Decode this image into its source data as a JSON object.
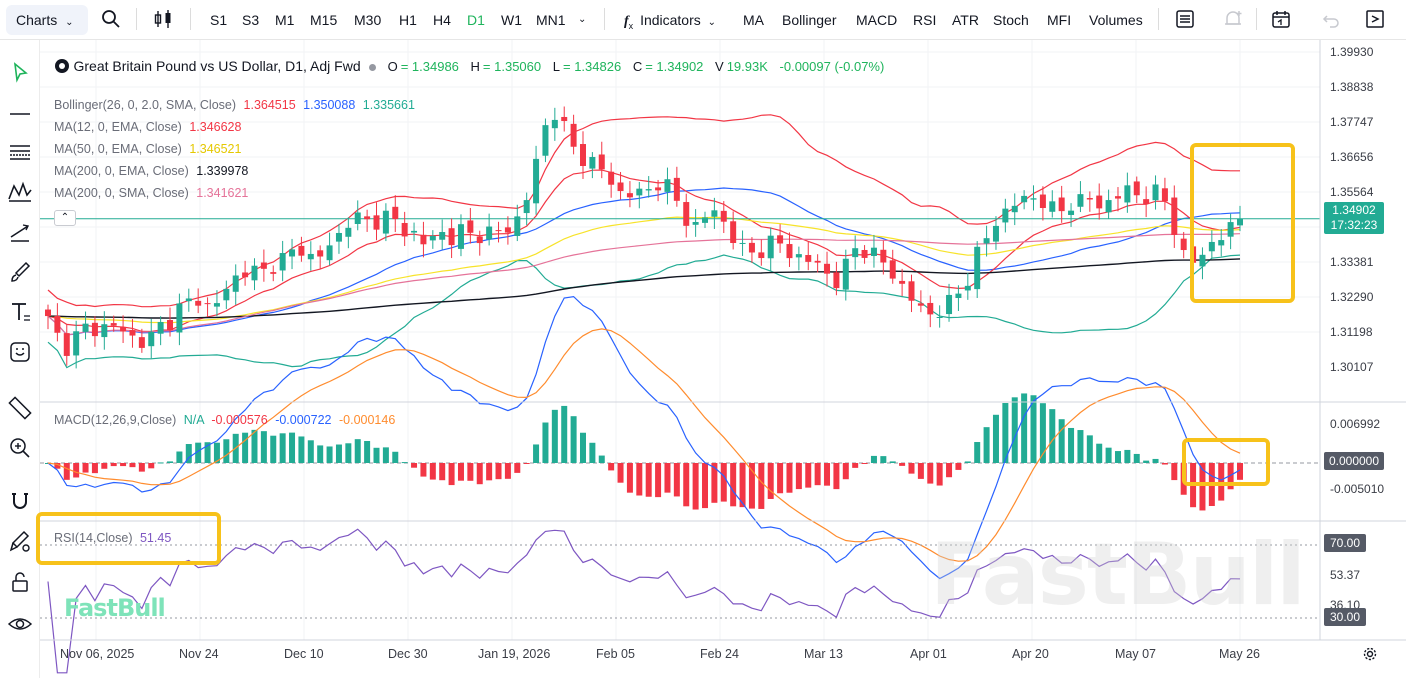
{
  "toolbar": {
    "charts_label": "Charts",
    "timeframes": [
      "S1",
      "S3",
      "M1",
      "M15",
      "M30",
      "H1",
      "H4",
      "D1",
      "W1",
      "MN1"
    ],
    "active_timeframe": "D1",
    "indicators_label": "Indicators",
    "quick_indicators": [
      "MA",
      "Bollinger",
      "MACD",
      "RSI",
      "ATR",
      "Stoch",
      "MFI",
      "Volumes"
    ]
  },
  "symbol": {
    "title": "Great Britain Pound vs US Dollar, D1, Adj Fwd",
    "o_label": "O",
    "o": "= 1.34986",
    "h_label": "H",
    "h": "= 1.35060",
    "l_label": "L",
    "l": "= 1.34826",
    "c_label": "C",
    "c": "= 1.34902",
    "v_label": "V",
    "v": "19.93K",
    "change": "-0.00097 (-0.07%)"
  },
  "indicators": {
    "bollinger": {
      "label": "Bollinger(26, 0, 2.0, SMA, Close)",
      "upper": "1.364515",
      "mid": "1.350088",
      "lower": "1.335661"
    },
    "ma12": {
      "label": "MA(12, 0, EMA, Close)",
      "value": "1.346628"
    },
    "ma50": {
      "label": "MA(50, 0, EMA, Close)",
      "value": "1.346521"
    },
    "ma200e": {
      "label": "MA(200, 0, EMA, Close)",
      "value": "1.339978"
    },
    "ma200s": {
      "label": "MA(200, 0, SMA, Close)",
      "value": "1.341621"
    },
    "macd": {
      "label": "MACD(12,26,9,Close)",
      "hist": "N/A",
      "macd": "-0.000576",
      "signal": "-0.000722",
      "diff": "-0.000146"
    },
    "rsi": {
      "label": "RSI(14,Close)",
      "value": "51.45"
    }
  },
  "price_axis": {
    "labels": [
      "1.39930",
      "1.38838",
      "1.37747",
      "1.36656",
      "1.35564",
      "1.33381",
      "1.32290",
      "1.31198",
      "1.30107"
    ],
    "current": "1.34902",
    "countdown": "17:32:23"
  },
  "macd_axis": {
    "labels": [
      "0.006992",
      "-0.005010"
    ],
    "current": "0.000000"
  },
  "rsi_axis": {
    "labels": [
      "53.37",
      "36.10"
    ],
    "upper": "70.00",
    "lower": "30.00"
  },
  "date_axis": [
    "Nov 06, 2025",
    "Nov 24",
    "Dec 10",
    "Dec 30",
    "Jan 19, 2026",
    "Feb 05",
    "Feb 24",
    "Mar 13",
    "Apr 01",
    "Apr 20",
    "May 07",
    "May 26"
  ],
  "branding": {
    "logo": "FastBull",
    "watermark": "FastBull"
  },
  "colors": {
    "up": "#22ab94",
    "down": "#f23645",
    "boll_upper": "#f23645",
    "boll_mid": "#2962ff",
    "boll_lower": "#22ab94",
    "ma50": "#f7e32a",
    "ma200e": "#131722",
    "ma200s": "#e57399",
    "macd_line": "#2962ff",
    "signal_line": "#ff8c2e",
    "rsi_line": "#7e57c2",
    "highlight": "#f7c21a"
  },
  "chart_data": {
    "type": "candlestick",
    "symbol": "GBPUSD",
    "timeframe": "D1",
    "x_range": [
      "Nov 06, 2025",
      "May 26"
    ],
    "y_range": [
      1.295,
      1.402
    ],
    "close_path": [
      1.318,
      1.3125,
      1.3095,
      1.314,
      1.316,
      1.315,
      1.3165,
      1.3155,
      1.3135,
      1.311,
      1.312,
      1.316,
      1.3175,
      1.3215,
      1.3235,
      1.3245,
      1.3215,
      1.324,
      1.329,
      1.3325,
      1.334,
      1.3315,
      1.3345,
      1.3365,
      1.3385,
      1.3395,
      1.3375,
      1.338,
      1.3405,
      1.345,
      1.35,
      1.3485,
      1.3475,
      1.3495,
      1.3505,
      1.3445,
      1.3455,
      1.342,
      1.3425,
      1.3445,
      1.3435,
      1.3455,
      1.3435,
      1.3445,
      1.3455,
      1.3445,
      1.3465,
      1.3525,
      1.3615,
      1.3755,
      1.383,
      1.3775,
      1.3705,
      1.3675,
      1.3665,
      1.3635,
      1.3585,
      1.3565,
      1.3575,
      1.3555,
      1.3605,
      1.3605,
      1.3555,
      1.3495,
      1.3465,
      1.3495,
      1.3515,
      1.3475,
      1.3425,
      1.3385,
      1.3385,
      1.3405,
      1.3425,
      1.3395,
      1.3375,
      1.3365,
      1.3355,
      1.3325,
      1.3295,
      1.3345,
      1.3405,
      1.3395,
      1.3375,
      1.3345,
      1.3305,
      1.3265,
      1.3225,
      1.3195,
      1.3205,
      1.3225,
      1.3255,
      1.3305,
      1.3385,
      1.3435,
      1.3485,
      1.3525,
      1.3545,
      1.3545,
      1.3565,
      1.3525,
      1.3505,
      1.3535,
      1.3545,
      1.3555,
      1.3525,
      1.3545,
      1.3565,
      1.3575,
      1.3565,
      1.3555,
      1.3575,
      1.3525,
      1.3395,
      1.3355,
      1.3365,
      1.3415,
      1.3435,
      1.3455,
      1.349
    ],
    "current_close": 1.34902,
    "macd_range": [
      -0.00501,
      0.006992
    ],
    "rsi_range": [
      30,
      70
    ],
    "rsi_last": 51.45
  }
}
